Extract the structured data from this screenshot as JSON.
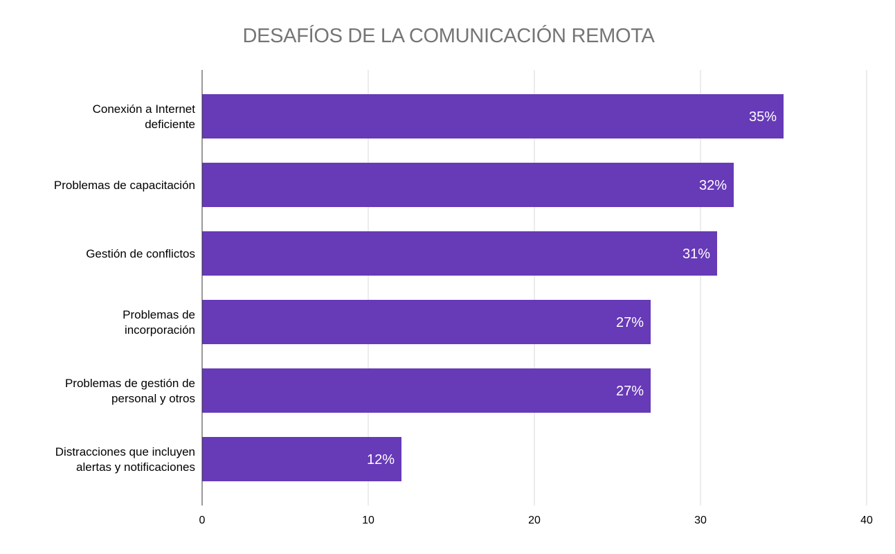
{
  "chart_data": {
    "type": "bar",
    "orientation": "horizontal",
    "title": "DESAFÍOS DE LA COMUNICACIÓN REMOTA",
    "xlabel": "",
    "ylabel": "",
    "categories": [
      [
        "Conexión a Internet",
        "deficiente"
      ],
      [
        "Problemas de capacitación"
      ],
      [
        "Gestión de conflictos"
      ],
      [
        "Problemas de",
        "incorporación"
      ],
      [
        "Problemas de gestión de",
        "personal y otros"
      ],
      [
        "Distracciones que incluyen",
        "alertas y notificaciones"
      ]
    ],
    "values": [
      35,
      32,
      31,
      27,
      27,
      12
    ],
    "data_labels": [
      "35%",
      "32%",
      "31%",
      "27%",
      "27%",
      "12%"
    ],
    "xlim": [
      0,
      40
    ],
    "x_ticks": [
      0,
      10,
      20,
      30,
      40
    ],
    "grid": "vertical",
    "legend": "none",
    "colors": {
      "bar": "#673ab7",
      "bar_label": "#ffffff",
      "grid": "#d9d9d9",
      "axis": "#333333",
      "title": "#757575",
      "text": "#000000"
    }
  }
}
